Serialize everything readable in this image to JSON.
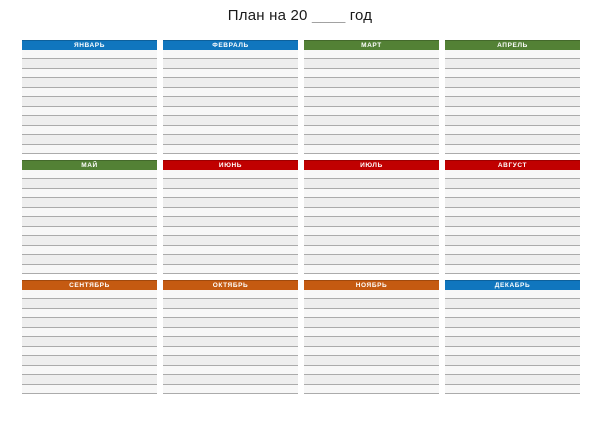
{
  "page": {
    "title_prefix": "План на 20",
    "title_blank": "____",
    "title_suffix": "год"
  },
  "palette": {
    "blue": "#1076BE",
    "green": "#538135",
    "red": "#C00000",
    "orange": "#C55A11",
    "line_gray": "#ABABAB",
    "band_light": "#F7F7F7",
    "band_dark": "#EEEEEE",
    "header_text": "#FFFFFF",
    "title_text": "#1A1A1A",
    "blank_gray": "#9E9E9E"
  },
  "layout": {
    "columns": 4,
    "rows": 3,
    "lines_per_month": 11
  },
  "months": [
    {
      "label": "ЯНВАРЬ",
      "color": "#1076BE"
    },
    {
      "label": "ФЕВРАЛЬ",
      "color": "#1076BE"
    },
    {
      "label": "МАРТ",
      "color": "#538135"
    },
    {
      "label": "АПРЕЛЬ",
      "color": "#538135"
    },
    {
      "label": "МАЙ",
      "color": "#538135"
    },
    {
      "label": "ИЮНЬ",
      "color": "#C00000"
    },
    {
      "label": "ИЮЛЬ",
      "color": "#C00000"
    },
    {
      "label": "АВГУСТ",
      "color": "#C00000"
    },
    {
      "label": "СЕНТЯБРЬ",
      "color": "#C55A11"
    },
    {
      "label": "ОКТЯБРЬ",
      "color": "#C55A11"
    },
    {
      "label": "НОЯБРЬ",
      "color": "#C55A11"
    },
    {
      "label": "ДЕКАБРЬ",
      "color": "#1076BE"
    }
  ]
}
